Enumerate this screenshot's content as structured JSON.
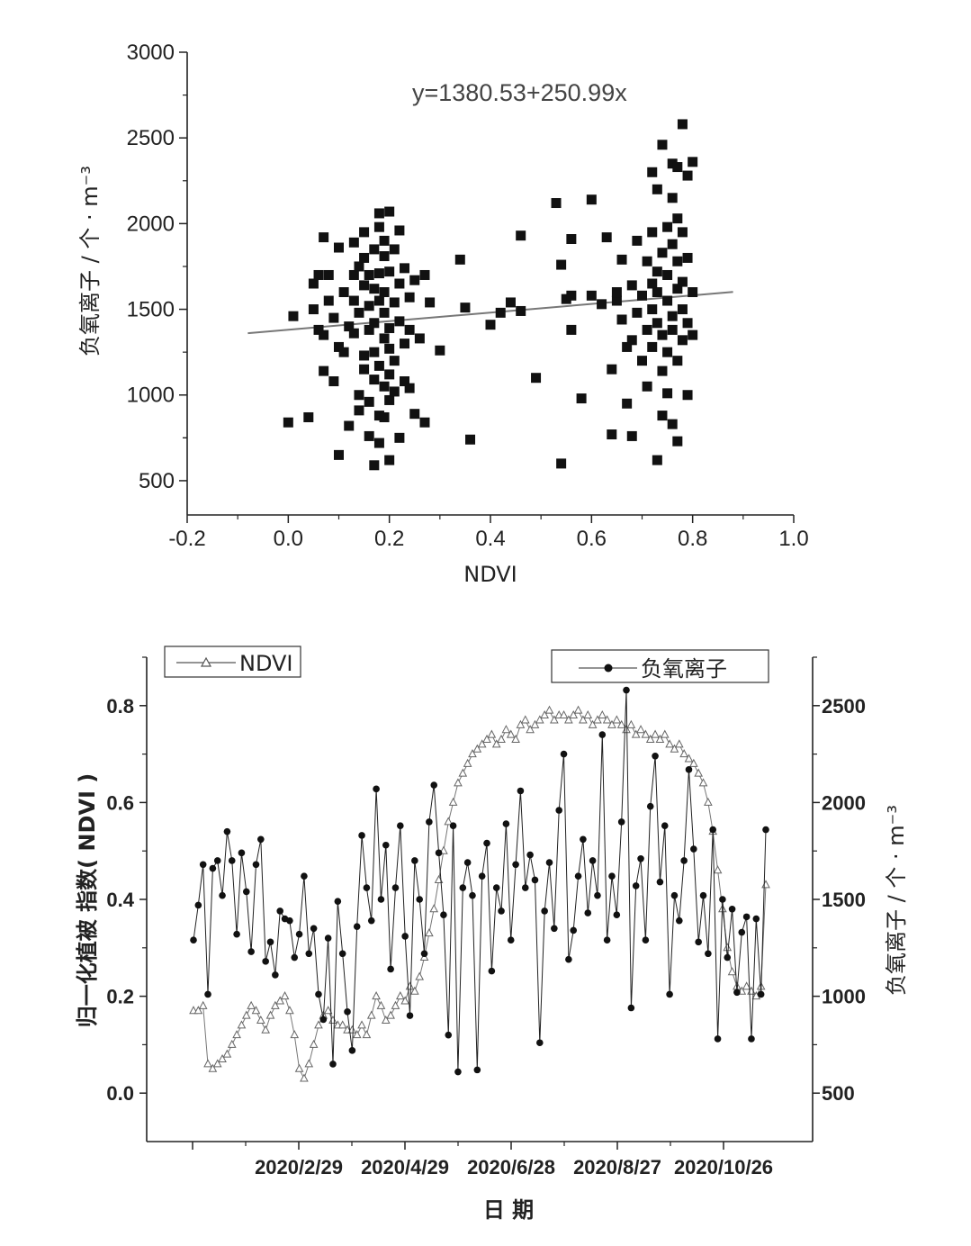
{
  "chart_data": [
    {
      "type": "scatter",
      "xlabel": "NDVI",
      "ylabel": "负氧离子 / 个 · m⁻³",
      "xlim": [
        -0.2,
        1.0
      ],
      "ylim": [
        300,
        3000
      ],
      "xticks": [
        "-0.2",
        "0.0",
        "0.2",
        "0.4",
        "0.6",
        "0.8",
        "1.0"
      ],
      "yticks": [
        "500",
        "1000",
        "1500",
        "2000",
        "2500",
        "3000"
      ],
      "annotation": "y=1380.53+250.99x",
      "fit_line": {
        "intercept": 1380.53,
        "slope": 250.99,
        "x_range": [
          -0.08,
          0.88
        ]
      },
      "marker": "filled square",
      "points": [
        [
          0.0,
          840
        ],
        [
          0.01,
          1460
        ],
        [
          0.04,
          870
        ],
        [
          0.05,
          1500
        ],
        [
          0.05,
          1650
        ],
        [
          0.06,
          1700
        ],
        [
          0.06,
          1380
        ],
        [
          0.07,
          1920
        ],
        [
          0.07,
          1350
        ],
        [
          0.07,
          1140
        ],
        [
          0.08,
          1550
        ],
        [
          0.08,
          1700
        ],
        [
          0.09,
          1450
        ],
        [
          0.09,
          1080
        ],
        [
          0.1,
          1280
        ],
        [
          0.1,
          650
        ],
        [
          0.1,
          1860
        ],
        [
          0.11,
          1250
        ],
        [
          0.11,
          1600
        ],
        [
          0.12,
          1400
        ],
        [
          0.12,
          820
        ],
        [
          0.13,
          1700
        ],
        [
          0.13,
          1550
        ],
        [
          0.13,
          1360
        ],
        [
          0.13,
          1890
        ],
        [
          0.14,
          1000
        ],
        [
          0.14,
          1750
        ],
        [
          0.14,
          1480
        ],
        [
          0.14,
          910
        ],
        [
          0.15,
          1640
        ],
        [
          0.15,
          1230
        ],
        [
          0.15,
          1150
        ],
        [
          0.15,
          1800
        ],
        [
          0.15,
          1950
        ],
        [
          0.16,
          760
        ],
        [
          0.16,
          1520
        ],
        [
          0.16,
          1700
        ],
        [
          0.16,
          1380
        ],
        [
          0.16,
          960
        ],
        [
          0.17,
          1850
        ],
        [
          0.17,
          1090
        ],
        [
          0.17,
          1620
        ],
        [
          0.17,
          590
        ],
        [
          0.17,
          1250
        ],
        [
          0.17,
          1420
        ],
        [
          0.18,
          1980
        ],
        [
          0.18,
          1550
        ],
        [
          0.18,
          1710
        ],
        [
          0.18,
          720
        ],
        [
          0.18,
          1170
        ],
        [
          0.18,
          880
        ],
        [
          0.18,
          2060
        ],
        [
          0.19,
          1330
        ],
        [
          0.19,
          1810
        ],
        [
          0.19,
          1050
        ],
        [
          0.19,
          1480
        ],
        [
          0.19,
          1600
        ],
        [
          0.19,
          870
        ],
        [
          0.19,
          1900
        ],
        [
          0.2,
          1270
        ],
        [
          0.2,
          620
        ],
        [
          0.2,
          1720
        ],
        [
          0.2,
          1120
        ],
        [
          0.2,
          1390
        ],
        [
          0.2,
          2070
        ],
        [
          0.2,
          970
        ],
        [
          0.21,
          1540
        ],
        [
          0.21,
          1850
        ],
        [
          0.21,
          1200
        ],
        [
          0.21,
          1020
        ],
        [
          0.22,
          1650
        ],
        [
          0.22,
          1430
        ],
        [
          0.22,
          1960
        ],
        [
          0.22,
          750
        ],
        [
          0.23,
          1300
        ],
        [
          0.23,
          1080
        ],
        [
          0.23,
          1740
        ],
        [
          0.24,
          1570
        ],
        [
          0.24,
          1040
        ],
        [
          0.24,
          1380
        ],
        [
          0.25,
          890
        ],
        [
          0.25,
          1670
        ],
        [
          0.26,
          1330
        ],
        [
          0.27,
          1700
        ],
        [
          0.27,
          840
        ],
        [
          0.28,
          1540
        ],
        [
          0.3,
          1260
        ],
        [
          0.34,
          1790
        ],
        [
          0.35,
          1510
        ],
        [
          0.36,
          740
        ],
        [
          0.4,
          1410
        ],
        [
          0.42,
          1480
        ],
        [
          0.44,
          1540
        ],
        [
          0.46,
          1490
        ],
        [
          0.46,
          1930
        ],
        [
          0.49,
          1100
        ],
        [
          0.53,
          2120
        ],
        [
          0.54,
          1760
        ],
        [
          0.54,
          600
        ],
        [
          0.55,
          1560
        ],
        [
          0.56,
          1580
        ],
        [
          0.56,
          1380
        ],
        [
          0.56,
          1910
        ],
        [
          0.58,
          980
        ],
        [
          0.6,
          2140
        ],
        [
          0.6,
          1580
        ],
        [
          0.62,
          1530
        ],
        [
          0.63,
          1920
        ],
        [
          0.64,
          1150
        ],
        [
          0.64,
          770
        ],
        [
          0.65,
          1550
        ],
        [
          0.65,
          1600
        ],
        [
          0.66,
          1790
        ],
        [
          0.66,
          1440
        ],
        [
          0.67,
          1280
        ],
        [
          0.67,
          950
        ],
        [
          0.68,
          760
        ],
        [
          0.68,
          1640
        ],
        [
          0.68,
          1320
        ],
        [
          0.69,
          1480
        ],
        [
          0.69,
          1900
        ],
        [
          0.7,
          1200
        ],
        [
          0.7,
          1580
        ],
        [
          0.71,
          1380
        ],
        [
          0.71,
          1780
        ],
        [
          0.71,
          1050
        ],
        [
          0.72,
          1950
        ],
        [
          0.72,
          1650
        ],
        [
          0.72,
          1500
        ],
        [
          0.72,
          2300
        ],
        [
          0.72,
          1280
        ],
        [
          0.73,
          1420
        ],
        [
          0.73,
          2200
        ],
        [
          0.73,
          1720
        ],
        [
          0.73,
          620
        ],
        [
          0.73,
          1600
        ],
        [
          0.74,
          2460
        ],
        [
          0.74,
          1350
        ],
        [
          0.74,
          880
        ],
        [
          0.74,
          1830
        ],
        [
          0.74,
          1140
        ],
        [
          0.75,
          1550
        ],
        [
          0.75,
          1980
        ],
        [
          0.75,
          1250
        ],
        [
          0.75,
          1700
        ],
        [
          0.75,
          1010
        ],
        [
          0.76,
          2350
        ],
        [
          0.76,
          1460
        ],
        [
          0.76,
          2150
        ],
        [
          0.76,
          1380
        ],
        [
          0.76,
          1880
        ],
        [
          0.76,
          830
        ],
        [
          0.77,
          1620
        ],
        [
          0.77,
          2030
        ],
        [
          0.77,
          1780
        ],
        [
          0.77,
          1200
        ],
        [
          0.77,
          2330
        ],
        [
          0.77,
          730
        ],
        [
          0.78,
          1500
        ],
        [
          0.78,
          2580
        ],
        [
          0.78,
          1320
        ],
        [
          0.78,
          1660
        ],
        [
          0.78,
          1950
        ],
        [
          0.79,
          2280
        ],
        [
          0.79,
          1420
        ],
        [
          0.79,
          1000
        ],
        [
          0.79,
          1800
        ],
        [
          0.8,
          1600
        ],
        [
          0.8,
          2360
        ],
        [
          0.8,
          1350
        ]
      ]
    },
    {
      "type": "line",
      "xlabel": "日 期",
      "y_left_label": "归一化植被  指数( NDVI )",
      "y_right_label": "负氧离子 / 个 · m⁻³",
      "y_left_lim": [
        -0.1,
        0.9
      ],
      "y_right_lim": [
        250,
        2750
      ],
      "y_left_ticks": [
        "0.0",
        "0.2",
        "0.4",
        "0.6",
        "0.8"
      ],
      "y_right_ticks": [
        "500",
        "1000",
        "1500",
        "2000",
        "2500"
      ],
      "x_tick_labels": [
        "2020/2/29",
        "2020/4/29",
        "2020/6/28",
        "2020/8/27",
        "2020/10/26"
      ],
      "legend": {
        "placement": "top",
        "left": "NDVI",
        "right": "负氧离子"
      },
      "series": [
        {
          "name": "NDVI",
          "marker": "hollow triangle",
          "axis": "left",
          "values": [
            0.17,
            0.17,
            0.18,
            0.06,
            0.05,
            0.06,
            0.07,
            0.08,
            0.1,
            0.12,
            0.14,
            0.16,
            0.18,
            0.17,
            0.15,
            0.13,
            0.16,
            0.18,
            0.19,
            0.2,
            0.17,
            0.12,
            0.05,
            0.03,
            0.06,
            0.1,
            0.14,
            0.16,
            0.17,
            0.15,
            0.14,
            0.14,
            0.13,
            0.13,
            0.12,
            0.14,
            0.12,
            0.16,
            0.2,
            0.18,
            0.15,
            0.16,
            0.18,
            0.2,
            0.19,
            0.22,
            0.21,
            0.24,
            0.28,
            0.33,
            0.38,
            0.44,
            0.5,
            0.56,
            0.6,
            0.64,
            0.66,
            0.68,
            0.7,
            0.71,
            0.72,
            0.73,
            0.74,
            0.72,
            0.73,
            0.75,
            0.74,
            0.73,
            0.76,
            0.77,
            0.75,
            0.76,
            0.77,
            0.78,
            0.79,
            0.77,
            0.78,
            0.78,
            0.77,
            0.78,
            0.79,
            0.77,
            0.78,
            0.76,
            0.77,
            0.78,
            0.77,
            0.76,
            0.77,
            0.76,
            0.75,
            0.76,
            0.74,
            0.75,
            0.74,
            0.73,
            0.74,
            0.73,
            0.74,
            0.72,
            0.71,
            0.72,
            0.7,
            0.69,
            0.68,
            0.66,
            0.64,
            0.6,
            0.54,
            0.46,
            0.38,
            0.3,
            0.25,
            0.22,
            0.21,
            0.22,
            0.21,
            0.2,
            0.22,
            0.43
          ]
        },
        {
          "name": "负氧离子",
          "marker": "filled circle",
          "axis": "right",
          "values": [
            1290,
            1470,
            1680,
            1010,
            1660,
            1700,
            1520,
            1850,
            1700,
            1320,
            1740,
            1540,
            1230,
            1680,
            1810,
            1180,
            1280,
            1110,
            1440,
            1400,
            1390,
            1200,
            1320,
            1620,
            1220,
            1350,
            1010,
            880,
            1300,
            650,
            1490,
            1220,
            920,
            720,
            1360,
            1830,
            1560,
            1390,
            2070,
            1500,
            1780,
            1140,
            1560,
            1880,
            1310,
            900,
            1700,
            1500,
            1220,
            1900,
            2090,
            1740,
            1420,
            800,
            1880,
            610,
            1560,
            1690,
            1520,
            620,
            1620,
            1790,
            1130,
            1560,
            1440,
            1890,
            1290,
            1680,
            2060,
            1560,
            1730,
            1600,
            760,
            1440,
            1690,
            1350,
            1960,
            2250,
            1190,
            1340,
            1620,
            1810,
            1430,
            1700,
            1520,
            2350,
            1290,
            1620,
            1420,
            1900,
            2580,
            940,
            1570,
            1710,
            1290,
            1980,
            2240,
            1590,
            1880,
            1010,
            1520,
            1390,
            1700,
            2170,
            1760,
            1280,
            1520,
            1220,
            1860,
            780,
            1500,
            1200,
            1450,
            1020,
            1330,
            1410,
            780,
            1400,
            1010,
            1860
          ]
        }
      ]
    }
  ]
}
